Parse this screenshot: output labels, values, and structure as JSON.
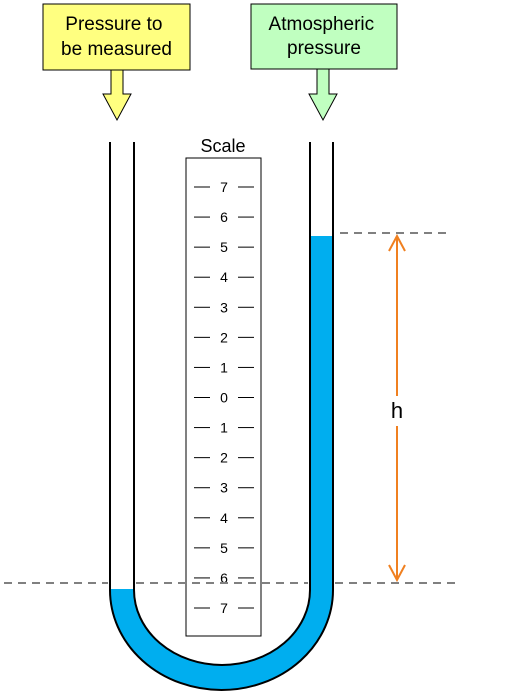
{
  "labels": {
    "pressure_measured": [
      "Pressure to",
      "be measured"
    ],
    "atmospheric": [
      "Atmospheric",
      "pressure"
    ],
    "scale_title": "Scale",
    "height": "h"
  },
  "scale": {
    "ticks": [
      "7",
      "6",
      "5",
      "4",
      "3",
      "2",
      "1",
      "0",
      "1",
      "2",
      "3",
      "4",
      "5",
      "6",
      "7"
    ]
  },
  "colors": {
    "liquid": "#00AEEF",
    "pressure_box": "#FFFF80",
    "atmospheric_box": "#C0FFC0",
    "height_arrow": "#F08020",
    "reference_line": "#808080"
  }
}
